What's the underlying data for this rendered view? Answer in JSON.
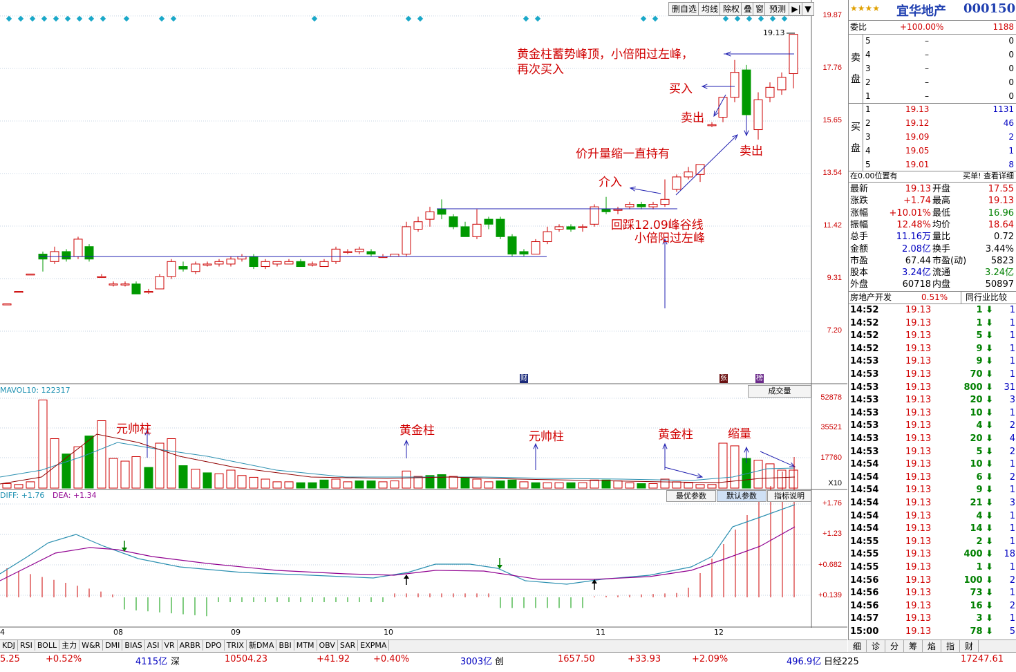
{
  "toolbar": {
    "buttons": [
      "删自选",
      "均线",
      "除权",
      "叠",
      "窗",
      "预测",
      "▶|",
      "▼"
    ]
  },
  "price_axis": [
    "19.87",
    "17.76",
    "15.65",
    "13.54",
    "11.42",
    "9.31",
    "7.20"
  ],
  "volume_axis": [
    "52878",
    "35521",
    "17760",
    "X10"
  ],
  "macd_axis": [
    "+1.76",
    "+1.23",
    "+0.682",
    "+0.139"
  ],
  "x_axis": [
    "4",
    "08",
    "09",
    "10",
    "11",
    "12"
  ],
  "max_price_label": "19.13",
  "event_badges": [
    "财",
    "张",
    "榜"
  ],
  "annotations": {
    "top_note_1": "黄金柱蓄势峰顶，小倍阳过左峰，",
    "top_note_2": "再次买入",
    "buy": "买入",
    "sell_1": "卖出",
    "sell_2": "卖出",
    "hold": "价升量缩一直持有",
    "enter": "介入",
    "pullback": "回踩12.09峰谷线",
    "small_yang": "小倍阳过左峰",
    "vol_1": "元帅柱",
    "vol_2": "黄金柱",
    "vol_3": "元帅柱",
    "vol_4": "黄金柱",
    "vol_5": "缩量"
  },
  "volume_header": {
    "label": "MAVOL10: 122317",
    "dropdown": "成交量"
  },
  "macd_header": {
    "diff": "DIFF: +1.76",
    "dea": "DEA: +1.34",
    "buttons": [
      "最优参数",
      "默认参数",
      "指标说明"
    ]
  },
  "stock": {
    "name": "宜华地产",
    "code": "000150",
    "stars": "★★★★"
  },
  "order_ratio": {
    "label": "委比",
    "value": "+100.00%",
    "diff": "1188"
  },
  "sell_side_label": [
    "卖",
    "盘"
  ],
  "buy_side_label": [
    "买",
    "盘"
  ],
  "sell_orders": [
    {
      "lvl": "5",
      "price": "–",
      "vol": "0"
    },
    {
      "lvl": "4",
      "price": "–",
      "vol": "0"
    },
    {
      "lvl": "3",
      "price": "–",
      "vol": "0"
    },
    {
      "lvl": "2",
      "price": "–",
      "vol": "0"
    },
    {
      "lvl": "1",
      "price": "–",
      "vol": "0"
    }
  ],
  "buy_orders": [
    {
      "lvl": "1",
      "price": "19.13",
      "vol": "1131"
    },
    {
      "lvl": "2",
      "price": "19.12",
      "vol": "46"
    },
    {
      "lvl": "3",
      "price": "19.09",
      "vol": "2"
    },
    {
      "lvl": "4",
      "price": "19.05",
      "vol": "1"
    },
    {
      "lvl": "5",
      "price": "19.01",
      "vol": "8"
    }
  ],
  "position_note": {
    "left": "在0.00位置有",
    "right": "买单! 查看详细"
  },
  "quote": [
    {
      "l1": "最新",
      "v1": "19.13",
      "l2": "开盘",
      "v2": "17.55"
    },
    {
      "l1": "涨跌",
      "v1": "+1.74",
      "l2": "最高",
      "v2": "19.13"
    },
    {
      "l1": "涨幅",
      "v1": "+10.01%",
      "l2": "最低",
      "v2": "16.96"
    },
    {
      "l1": "振幅",
      "v1": "12.48%",
      "l2": "均价",
      "v2": "18.64"
    },
    {
      "l1": "总手",
      "v1": "11.16万",
      "l2": "量比",
      "v2": "0.72"
    },
    {
      "l1": "金额",
      "v1": "2.08亿",
      "l2": "换手",
      "v2": "3.44%"
    },
    {
      "l1": "市盈",
      "v1": "67.44",
      "l2": "市盈(动)",
      "v2": "5823"
    },
    {
      "l1": "股本",
      "v1": "3.24亿",
      "l2": "流通",
      "v2": "3.24亿"
    },
    {
      "l1": "外盘",
      "v1": "60718",
      "l2": "内盘",
      "v2": "50897"
    }
  ],
  "sector": {
    "name": "房地产开发",
    "change": "0.51%",
    "compare": "同行业比较"
  },
  "ticks": [
    {
      "t": "14:52",
      "p": "19.13",
      "v": "1",
      "n": "1"
    },
    {
      "t": "14:52",
      "p": "19.13",
      "v": "1",
      "n": "1"
    },
    {
      "t": "14:52",
      "p": "19.13",
      "v": "5",
      "n": "1"
    },
    {
      "t": "14:52",
      "p": "19.13",
      "v": "9",
      "n": "1"
    },
    {
      "t": "14:53",
      "p": "19.13",
      "v": "9",
      "n": "1"
    },
    {
      "t": "14:53",
      "p": "19.13",
      "v": "70",
      "n": "1"
    },
    {
      "t": "14:53",
      "p": "19.13",
      "v": "800",
      "n": "31"
    },
    {
      "t": "14:53",
      "p": "19.13",
      "v": "20",
      "n": "3"
    },
    {
      "t": "14:53",
      "p": "19.13",
      "v": "10",
      "n": "1"
    },
    {
      "t": "14:53",
      "p": "19.13",
      "v": "4",
      "n": "2"
    },
    {
      "t": "14:53",
      "p": "19.13",
      "v": "20",
      "n": "4"
    },
    {
      "t": "14:53",
      "p": "19.13",
      "v": "5",
      "n": "2"
    },
    {
      "t": "14:54",
      "p": "19.13",
      "v": "10",
      "n": "1"
    },
    {
      "t": "14:54",
      "p": "19.13",
      "v": "6",
      "n": "2"
    },
    {
      "t": "14:54",
      "p": "19.13",
      "v": "9",
      "n": "1"
    },
    {
      "t": "14:54",
      "p": "19.13",
      "v": "21",
      "n": "3"
    },
    {
      "t": "14:54",
      "p": "19.13",
      "v": "4",
      "n": "1"
    },
    {
      "t": "14:54",
      "p": "19.13",
      "v": "14",
      "n": "1"
    },
    {
      "t": "14:55",
      "p": "19.13",
      "v": "2",
      "n": "1"
    },
    {
      "t": "14:55",
      "p": "19.13",
      "v": "400",
      "n": "18"
    },
    {
      "t": "14:55",
      "p": "19.13",
      "v": "1",
      "n": "1"
    },
    {
      "t": "14:56",
      "p": "19.13",
      "v": "100",
      "n": "2"
    },
    {
      "t": "14:56",
      "p": "19.13",
      "v": "73",
      "n": "1"
    },
    {
      "t": "14:56",
      "p": "19.13",
      "v": "16",
      "n": "2"
    },
    {
      "t": "14:57",
      "p": "19.13",
      "v": "3",
      "n": "1"
    },
    {
      "t": "15:00",
      "p": "19.13",
      "v": "78",
      "n": "5"
    }
  ],
  "indicator_tabs": [
    "KDJ",
    "RSI",
    "BOLL",
    "主力",
    "W&R",
    "DMI",
    "BIAS",
    "ASI",
    "VR",
    "ARBR",
    "DPO",
    "TRIX",
    "新DMA",
    "BBI",
    "MTM",
    "OBV",
    "SAR",
    "EXPMA"
  ],
  "detail_tabs": [
    "细",
    "诊",
    "分",
    "筹",
    "焰",
    "指",
    "财"
  ],
  "status": {
    "s1": "5.25",
    "s2": "+0.52%",
    "s3": "4115亿",
    "s4": "深",
    "s5": "10504.23",
    "s6": "+41.92",
    "s7": "+0.40%",
    "s8": "3003亿",
    "s9": "创",
    "s10": "1657.50",
    "s11": "+33.93",
    "s12": "+2.09%",
    "s13": "496.9亿",
    "s14": "日经225",
    "s15": "17247.61"
  },
  "colors": {
    "up": "#cc0000",
    "down": "#009900",
    "line_blue": "#1f1fb0",
    "grid": "#8aa8c8"
  }
}
